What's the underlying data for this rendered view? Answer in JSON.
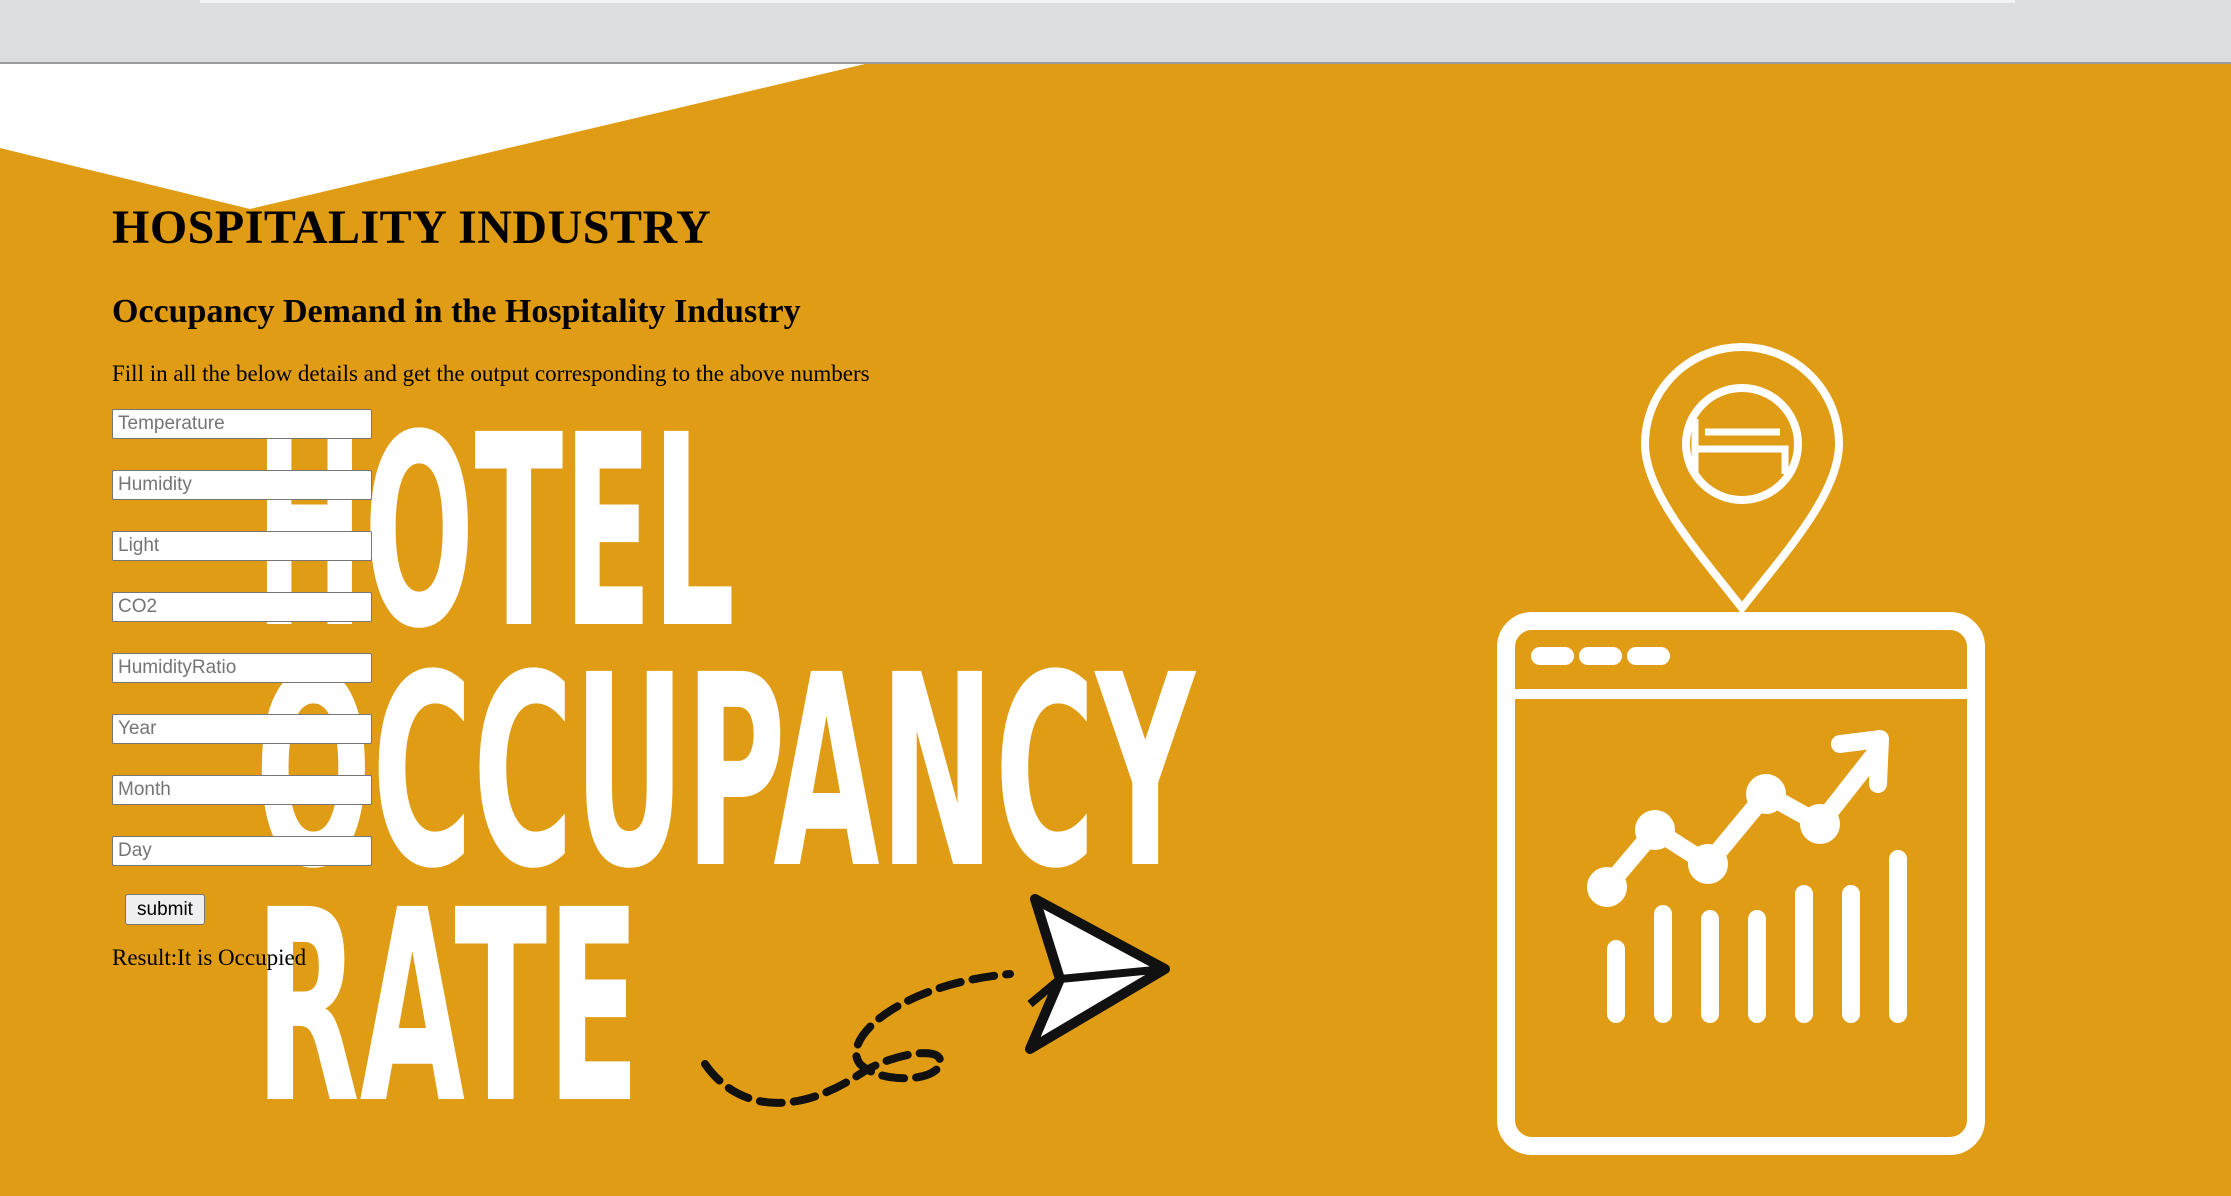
{
  "header": {
    "title": "HOSPITALITY INDUSTRY",
    "subtitle": "Occupancy Demand in the Hospitality Industry",
    "instructions": "Fill in all the below details and get the output corresponding to the above numbers"
  },
  "form": {
    "fields": [
      {
        "placeholder": "Temperature",
        "value": ""
      },
      {
        "placeholder": "Humidity",
        "value": ""
      },
      {
        "placeholder": "Light",
        "value": ""
      },
      {
        "placeholder": "CO2",
        "value": ""
      },
      {
        "placeholder": "HumidityRatio",
        "value": ""
      },
      {
        "placeholder": "Year",
        "value": ""
      },
      {
        "placeholder": "Month",
        "value": ""
      },
      {
        "placeholder": "Day",
        "value": ""
      }
    ],
    "submit_label": "submit",
    "result_text": "Result:It is Occupied"
  },
  "banner": {
    "lines": [
      "HOTEL",
      "OCCUPANCY",
      "RATE"
    ],
    "icons": [
      "hotel-location-pin-icon",
      "analytics-dashboard-icon",
      "paper-plane-icon"
    ]
  },
  "colors": {
    "background": "#e09c14",
    "graphic": "#ffffff",
    "text": "#000000"
  }
}
